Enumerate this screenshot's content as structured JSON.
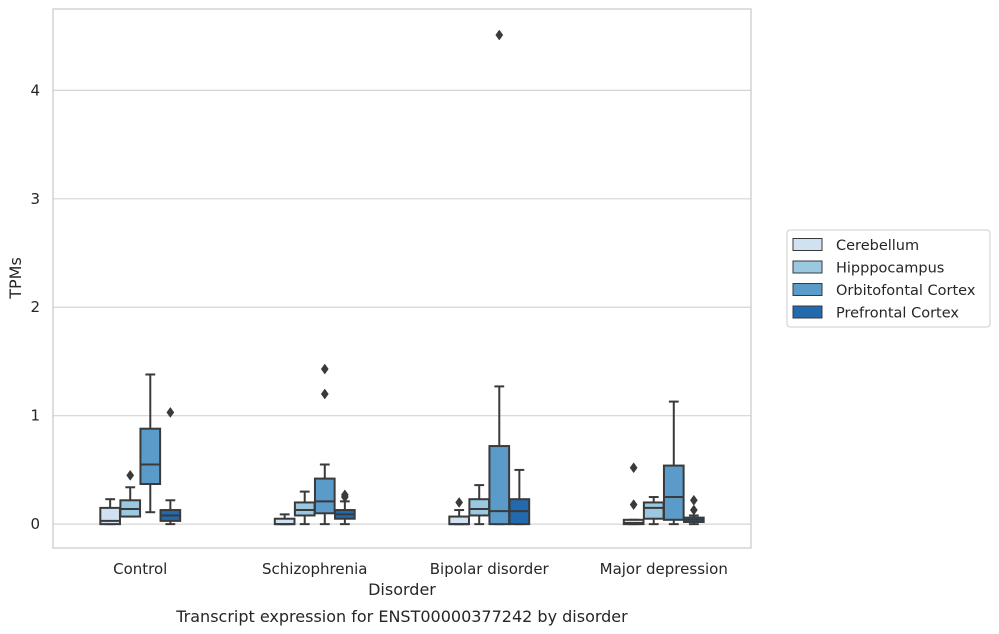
{
  "chart_data": {
    "type": "box",
    "title": "",
    "caption": "Transcript expression for ENST00000377242 by disorder",
    "xlabel": "Disorder",
    "ylabel": "TPMs",
    "ylim": [
      -0.22,
      4.75
    ],
    "yticks": [
      "0",
      "1",
      "2",
      "3",
      "4"
    ],
    "grid": "horizontal",
    "legend_position": "right",
    "categories": [
      "Control",
      "Schizophrenia",
      "Bipolar disorder",
      "Major depression"
    ],
    "series": [
      {
        "name": "Cerebellum",
        "color": "#d0e1f2",
        "boxes": [
          {
            "q1": 0.0,
            "median": 0.03,
            "q3": 0.15,
            "whisker_low": 0.0,
            "whisker_high": 0.23,
            "outliers": []
          },
          {
            "q1": 0.0,
            "median": 0.0,
            "q3": 0.05,
            "whisker_low": 0.0,
            "whisker_high": 0.09,
            "outliers": []
          },
          {
            "q1": 0.0,
            "median": 0.0,
            "q3": 0.07,
            "whisker_low": 0.0,
            "whisker_high": 0.13,
            "outliers": [
              0.2
            ]
          },
          {
            "q1": 0.0,
            "median": 0.01,
            "q3": 0.04,
            "whisker_low": 0.0,
            "whisker_high": 0.04,
            "outliers": [
              0.52,
              0.18
            ]
          }
        ]
      },
      {
        "name": "Hipppocampus",
        "color": "#9ac8e0",
        "boxes": [
          {
            "q1": 0.07,
            "median": 0.14,
            "q3": 0.22,
            "whisker_low": 0.07,
            "whisker_high": 0.34,
            "outliers": [
              0.45
            ]
          },
          {
            "q1": 0.08,
            "median": 0.13,
            "q3": 0.2,
            "whisker_low": 0.0,
            "whisker_high": 0.3,
            "outliers": []
          },
          {
            "q1": 0.08,
            "median": 0.14,
            "q3": 0.23,
            "whisker_low": 0.0,
            "whisker_high": 0.36,
            "outliers": []
          },
          {
            "q1": 0.05,
            "median": 0.15,
            "q3": 0.2,
            "whisker_low": 0.0,
            "whisker_high": 0.25,
            "outliers": []
          }
        ]
      },
      {
        "name": "Orbitofontal Cortex",
        "color": "#5a9bc9",
        "boxes": [
          {
            "q1": 0.37,
            "median": 0.55,
            "q3": 0.88,
            "whisker_low": 0.11,
            "whisker_high": 1.38,
            "outliers": []
          },
          {
            "q1": 0.1,
            "median": 0.21,
            "q3": 0.42,
            "whisker_low": 0.0,
            "whisker_high": 0.55,
            "outliers": [
              1.43,
              1.2
            ]
          },
          {
            "q1": 0.0,
            "median": 0.12,
            "q3": 0.72,
            "whisker_low": 0.0,
            "whisker_high": 1.27,
            "outliers": [
              4.51
            ]
          },
          {
            "q1": 0.04,
            "median": 0.25,
            "q3": 0.54,
            "whisker_low": 0.0,
            "whisker_high": 1.13,
            "outliers": []
          }
        ]
      },
      {
        "name": "Prefrontal Cortex",
        "color": "#2369ad",
        "boxes": [
          {
            "q1": 0.03,
            "median": 0.08,
            "q3": 0.13,
            "whisker_low": 0.0,
            "whisker_high": 0.22,
            "outliers": [
              1.03
            ]
          },
          {
            "q1": 0.05,
            "median": 0.09,
            "q3": 0.13,
            "whisker_low": 0.0,
            "whisker_high": 0.21,
            "outliers": [
              0.27,
              0.25
            ]
          },
          {
            "q1": 0.0,
            "median": 0.12,
            "q3": 0.23,
            "whisker_low": 0.0,
            "whisker_high": 0.5,
            "outliers": []
          },
          {
            "q1": 0.02,
            "median": 0.04,
            "q3": 0.06,
            "whisker_low": 0.0,
            "whisker_high": 0.08,
            "outliers": [
              0.22,
              0.13
            ]
          }
        ]
      }
    ]
  },
  "colors": {
    "grid": "#d5d5d5",
    "frame": "#cccccc",
    "box_edge": "#3a3a3a",
    "text": "#262626"
  }
}
